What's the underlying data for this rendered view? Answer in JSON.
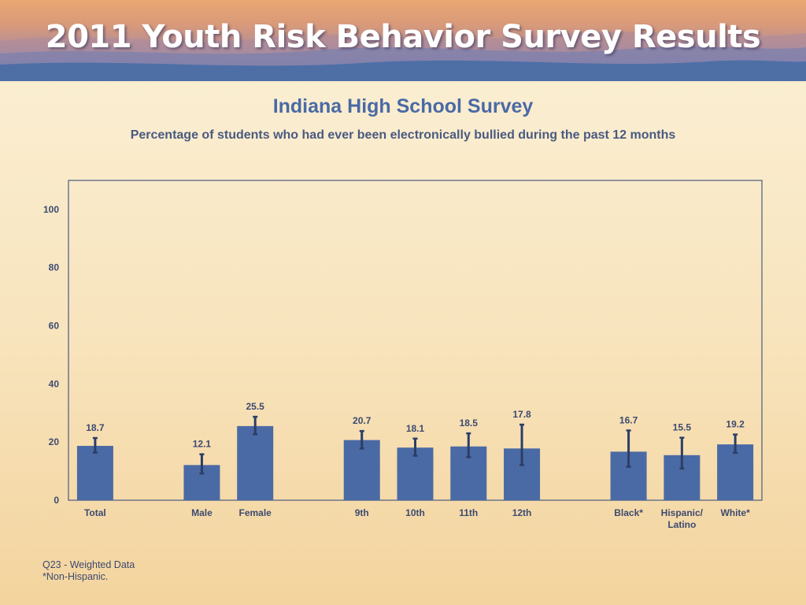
{
  "banner": {
    "title": "2011 Youth Risk Behavior Survey Results"
  },
  "colors": {
    "bar": "#4a6aa5",
    "axis": "#4a5a80",
    "text": "#3c4a70",
    "title": "#4a6aa5"
  },
  "footnotes": [
    "Q23 - Weighted Data",
    "*Non-Hispanic."
  ],
  "chart_data": {
    "type": "bar",
    "title": "Indiana High School Survey",
    "subtitle": "Percentage of students who had ever been electronically bullied during the past 12 months",
    "xlabel": "",
    "ylabel": "",
    "ylim": [
      0,
      110
    ],
    "yticks": [
      0,
      20,
      40,
      60,
      80,
      100
    ],
    "grid": false,
    "legend": "none",
    "categories": [
      "Total",
      "Male",
      "Female",
      "9th",
      "10th",
      "11th",
      "12th",
      "Black*",
      "Hispanic/\nLatino",
      "White*"
    ],
    "values": [
      18.7,
      12.1,
      25.5,
      20.7,
      18.1,
      18.5,
      17.8,
      16.7,
      15.5,
      19.2
    ],
    "error_low": [
      16.4,
      9.2,
      22.7,
      17.8,
      15.3,
      14.8,
      12.1,
      11.5,
      10.9,
      16.3
    ],
    "error_high": [
      21.4,
      15.8,
      28.7,
      23.8,
      21.2,
      23.0,
      26.0,
      24.0,
      21.5,
      22.6
    ]
  }
}
